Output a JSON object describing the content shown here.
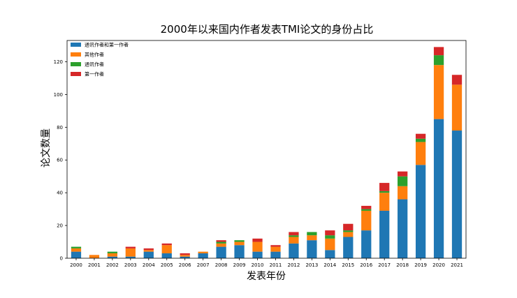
{
  "chart_data": {
    "type": "bar",
    "stacked": true,
    "title": "2000年以来国内作者发表TMI论文的身份占比",
    "xlabel": "发表年份",
    "ylabel": "论文数量",
    "ylim": [
      0,
      133
    ],
    "yticks": [
      0,
      20,
      40,
      60,
      80,
      100,
      120
    ],
    "grid": false,
    "legend_position": "top-left",
    "categories": [
      "2000",
      "2001",
      "2002",
      "2003",
      "2004",
      "2005",
      "2006",
      "2007",
      "2008",
      "2009",
      "2010",
      "2011",
      "2012",
      "2013",
      "2014",
      "2015",
      "2016",
      "2017",
      "2018",
      "2019",
      "2020",
      "2021"
    ],
    "series": [
      {
        "name": "通讯作者和第一作者",
        "color": "#1f77b4",
        "values": [
          4,
          0,
          1,
          1,
          4,
          3,
          1,
          3,
          7,
          8,
          4,
          4,
          9,
          11,
          5,
          13,
          17,
          29,
          36,
          57,
          85,
          78
        ]
      },
      {
        "name": "其他作者",
        "color": "#ff7f0e",
        "values": [
          2,
          2,
          2,
          5,
          1,
          5,
          1,
          1,
          2,
          2,
          6,
          3,
          4,
          3,
          7,
          3,
          12,
          11,
          8,
          14,
          33,
          28
        ]
      },
      {
        "name": "通讯作者",
        "color": "#2ca02c",
        "values": [
          1,
          0,
          1,
          0,
          0,
          0,
          0,
          0,
          1,
          1,
          0,
          0,
          1,
          2,
          2,
          1,
          1,
          1,
          6,
          2,
          6,
          0
        ]
      },
      {
        "name": "第一作者",
        "color": "#d62728",
        "values": [
          0,
          0,
          0,
          1,
          1,
          1,
          1,
          0,
          1,
          0,
          2,
          1,
          2,
          0,
          3,
          4,
          2,
          5,
          3,
          3,
          5,
          6
        ]
      }
    ]
  }
}
